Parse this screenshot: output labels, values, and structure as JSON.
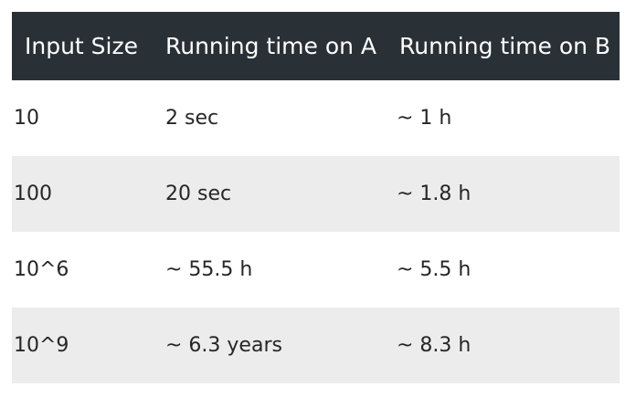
{
  "table": {
    "headers": [
      "Input Size",
      "Running time on A",
      "Running time on B"
    ],
    "rows": [
      [
        "10",
        "2 sec",
        "~ 1 h"
      ],
      [
        "100",
        "20 sec",
        "~ 1.8 h"
      ],
      [
        "10^6",
        "~ 55.5 h",
        "~ 5.5 h"
      ],
      [
        "10^9",
        "~ 6.3 years",
        "~ 8.3 h"
      ]
    ]
  },
  "colors": {
    "header_background": "#2a3136",
    "header_text": "#ffffff",
    "shaded_row_background": "#ececec",
    "body_text": "#262626"
  }
}
